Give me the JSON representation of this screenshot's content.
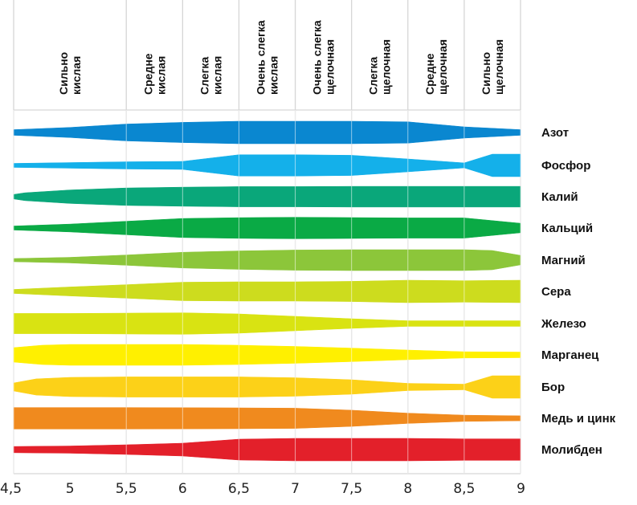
{
  "chart_data": {
    "type": "area",
    "xlim": [
      4.5,
      9
    ],
    "x_ticks": [
      "4,5",
      "5",
      "5,5",
      "6",
      "6,5",
      "7",
      "7,5",
      "8",
      "8,5",
      "9"
    ],
    "x_tick_values": [
      4.5,
      5,
      5.5,
      6,
      6.5,
      7,
      7.5,
      8,
      8.5,
      9
    ],
    "ranges": [
      {
        "label": [
          "Сильно",
          "кислая"
        ],
        "from": 4.5,
        "to": 5.5
      },
      {
        "label": [
          "Средне",
          "кислая"
        ],
        "from": 5.5,
        "to": 6
      },
      {
        "label": [
          "Слегка",
          "кислая"
        ],
        "from": 6,
        "to": 6.5
      },
      {
        "label": [
          "Очень слегка",
          "кислая"
        ],
        "from": 6.5,
        "to": 7
      },
      {
        "label": [
          "Очень слегка",
          "щелочная"
        ],
        "from": 7,
        "to": 7.5
      },
      {
        "label": [
          "Слегка",
          "щелочная"
        ],
        "from": 7.5,
        "to": 8
      },
      {
        "label": [
          "Средне",
          "щелочная"
        ],
        "from": 8,
        "to": 8.5
      },
      {
        "label": [
          "Сильно",
          "щелочная"
        ],
        "from": 8.5,
        "to": 9
      }
    ],
    "series": [
      {
        "name": "Азот",
        "color": "#0a87d0",
        "x": [
          4.5,
          5,
          5.5,
          6,
          6.5,
          7,
          7.5,
          8,
          8.5,
          9
        ],
        "values": [
          0.25,
          0.45,
          0.75,
          0.9,
          1,
          1,
          1,
          0.95,
          0.5,
          0.25
        ]
      },
      {
        "name": "Фосфор",
        "color": "#14b0ea",
        "x": [
          4.5,
          5,
          5.5,
          6,
          6.5,
          7,
          7.5,
          8,
          8.5,
          8.75,
          9
        ],
        "values": [
          0.18,
          0.25,
          0.32,
          0.36,
          0.95,
          0.95,
          0.9,
          0.57,
          0.22,
          1,
          1
        ]
      },
      {
        "name": "Калий",
        "color": "#0aa77a",
        "x": [
          4.5,
          4.6,
          5,
          5.5,
          6,
          6.5,
          7,
          7.5,
          8,
          8.5,
          9
        ],
        "values": [
          0.2,
          0.35,
          0.6,
          0.78,
          0.85,
          0.9,
          0.9,
          0.92,
          0.92,
          0.92,
          0.92
        ]
      },
      {
        "name": "Кальций",
        "color": "#0aaa45",
        "x": [
          4.5,
          5,
          5.5,
          6,
          6.5,
          7,
          7.5,
          8,
          8.5,
          9
        ],
        "values": [
          0.18,
          0.35,
          0.6,
          0.85,
          0.92,
          0.96,
          0.93,
          0.9,
          0.9,
          0.42
        ]
      },
      {
        "name": "Магний",
        "color": "#8cc63a",
        "x": [
          4.5,
          5,
          5.5,
          6,
          6.5,
          7,
          7.5,
          8,
          8.5,
          8.75,
          9
        ],
        "values": [
          0.14,
          0.25,
          0.46,
          0.7,
          0.82,
          0.9,
          0.93,
          0.93,
          0.93,
          0.86,
          0.42
        ]
      },
      {
        "name": "Сера",
        "color": "#cddc1e",
        "x": [
          4.5,
          5,
          5.5,
          6,
          6.5,
          7,
          7.5,
          8,
          8.5,
          9
        ],
        "values": [
          0.18,
          0.4,
          0.6,
          0.82,
          0.86,
          0.86,
          0.9,
          1,
          0.96,
          1
        ]
      },
      {
        "name": "Железо",
        "color": "#d9e312",
        "x": [
          4.5,
          5,
          5.5,
          6,
          6.5,
          7,
          7.5,
          8,
          8.5,
          9
        ],
        "values": [
          0.9,
          0.9,
          0.93,
          0.96,
          0.86,
          0.64,
          0.43,
          0.25,
          0.25,
          0.25
        ]
      },
      {
        "name": "Марганец",
        "color": "#fff000",
        "x": [
          4.5,
          4.75,
          5,
          5.5,
          6,
          6.5,
          7,
          7.5,
          8,
          8.5,
          9
        ],
        "values": [
          0.64,
          0.86,
          0.93,
          0.93,
          0.93,
          0.86,
          0.75,
          0.6,
          0.43,
          0.28,
          0.25
        ]
      },
      {
        "name": "Бор",
        "color": "#fcd118",
        "x": [
          4.5,
          4.7,
          5,
          5.5,
          6,
          6.5,
          7,
          7.5,
          8,
          8.5,
          8.75,
          9
        ],
        "values": [
          0.36,
          0.72,
          0.86,
          0.9,
          0.9,
          0.9,
          0.82,
          0.64,
          0.32,
          0.25,
          1,
          1
        ]
      },
      {
        "name": "Медь и цинк",
        "color": "#f08a1e",
        "x": [
          4.5,
          5.5,
          6.5,
          7,
          7.5,
          8,
          8.5,
          9
        ],
        "values": [
          0.96,
          0.96,
          0.93,
          0.9,
          0.72,
          0.46,
          0.28,
          0.22
        ]
      },
      {
        "name": "Молибден",
        "color": "#e3202a",
        "x": [
          4.5,
          5,
          5.5,
          6,
          6.5,
          7,
          7.5,
          8,
          8.5,
          9
        ],
        "values": [
          0.28,
          0.32,
          0.43,
          0.57,
          0.93,
          1,
          1,
          1,
          0.96,
          0.96
        ]
      }
    ]
  }
}
